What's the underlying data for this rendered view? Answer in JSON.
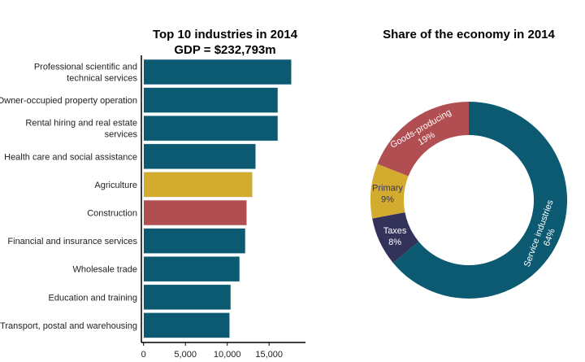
{
  "chart_data": [
    {
      "type": "bar",
      "orientation": "horizontal",
      "title": "Top 10 industries in 2014",
      "subtitle": "GDP = $232,793m",
      "xlabel": "",
      "ylabel": "",
      "xlim": [
        0,
        19200
      ],
      "xticks": [
        0,
        5000,
        10000,
        15000
      ],
      "xtick_labels": [
        "0",
        "5,000",
        "10,000",
        "15,000"
      ],
      "categories": [
        [
          "Professional scientific and",
          "technical services"
        ],
        [
          "Owner-occupied property operation"
        ],
        [
          "Rental hiring and real estate",
          "services"
        ],
        [
          "Health care and social assistance"
        ],
        [
          "Agriculture"
        ],
        [
          "Construction"
        ],
        [
          "Financial and insurance services"
        ],
        [
          "Wholesale trade"
        ],
        [
          "Education and training"
        ],
        [
          "Transport, postal and warehousing"
        ]
      ],
      "values": [
        17670,
        16050,
        16050,
        13400,
        13010,
        12330,
        12165,
        11485,
        10420,
        10290
      ],
      "colors": [
        "#0b5a72",
        "#0b5a72",
        "#0b5a72",
        "#0b5a72",
        "#d3ac2f",
        "#b04e52",
        "#0b5a72",
        "#0b5a72",
        "#0b5a72",
        "#0b5a72"
      ],
      "grid": false
    },
    {
      "type": "pie",
      "donut": true,
      "title": "Share of the economy in 2014",
      "slices": [
        {
          "label": "Service industries",
          "value": 64,
          "pct": "64%",
          "color": "#0b5a72",
          "text_color": "#ffffff"
        },
        {
          "label": "Taxes",
          "value": 8,
          "pct": "8%",
          "color": "#33325a",
          "text_color": "#ffffff"
        },
        {
          "label": "Primary",
          "value": 9,
          "pct": "9%",
          "color": "#d3ac2f",
          "text_color": "#33325a"
        },
        {
          "label": "Goods-producing",
          "value": 19,
          "pct": "19%",
          "color": "#b04e52",
          "text_color": "#ffffff"
        }
      ]
    }
  ]
}
